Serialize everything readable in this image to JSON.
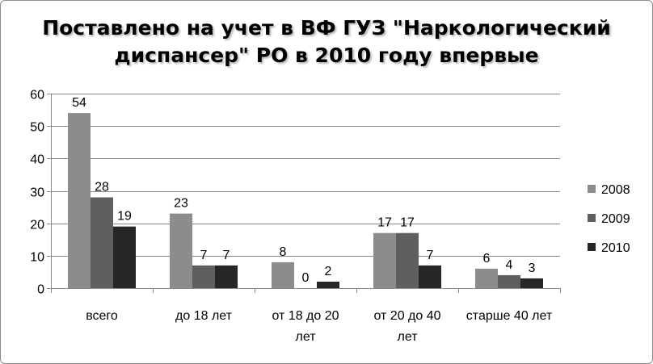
{
  "chart_data": {
    "type": "bar",
    "title_lines": [
      "Поставлено на учет в ВФ ГУЗ \"Наркологический",
      "диспансер\" РО в 2010 году впервые"
    ],
    "categories": [
      [
        "всего"
      ],
      [
        "до 18 лет"
      ],
      [
        "от 18 до 20",
        "лет"
      ],
      [
        "от 20 до 40",
        "лет"
      ],
      [
        "старше 40 лет"
      ]
    ],
    "series": [
      {
        "name": "2008",
        "color": "#8c8c8c",
        "values": [
          54,
          23,
          8,
          17,
          6
        ]
      },
      {
        "name": "2009",
        "color": "#5f5f5f",
        "values": [
          28,
          7,
          0,
          17,
          4
        ]
      },
      {
        "name": "2010",
        "color": "#262626",
        "values": [
          19,
          7,
          2,
          7,
          3
        ]
      }
    ],
    "ylim": [
      0,
      60
    ],
    "yticks": [
      0,
      10,
      20,
      30,
      40,
      50,
      60
    ],
    "xlabel": "",
    "ylabel": "",
    "grid": true,
    "legend": "right"
  }
}
